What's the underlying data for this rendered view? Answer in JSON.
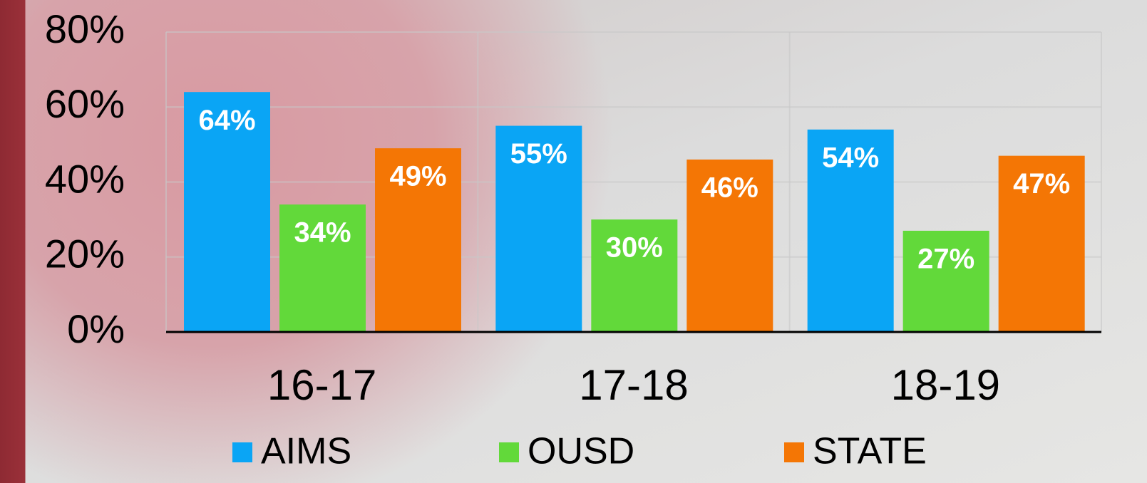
{
  "chart_data": {
    "type": "bar",
    "categories": [
      "16-17",
      "17-18",
      "18-19"
    ],
    "series": [
      {
        "name": "AIMS",
        "color": "#0aa5f5",
        "values": [
          64,
          55,
          54
        ],
        "value_labels": [
          "64%",
          "55%",
          "54%"
        ]
      },
      {
        "name": "OUSD",
        "color": "#62d93a",
        "values": [
          34,
          30,
          27
        ],
        "value_labels": [
          "34%",
          "30%",
          "27%"
        ]
      },
      {
        "name": "STATE",
        "color": "#f47605",
        "values": [
          49,
          46,
          47
        ],
        "value_labels": [
          "49%",
          "46%",
          "47%"
        ]
      }
    ],
    "ylim": [
      0,
      80
    ],
    "yticks": [
      {
        "value": 0,
        "label": "0%"
      },
      {
        "value": 20,
        "label": "20%"
      },
      {
        "value": 40,
        "label": "40%"
      },
      {
        "value": 60,
        "label": "60%"
      },
      {
        "value": 80,
        "label": "80%"
      }
    ],
    "grid": true
  }
}
